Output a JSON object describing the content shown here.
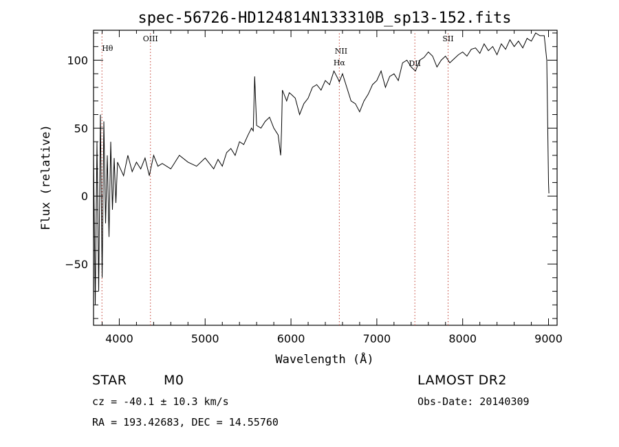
{
  "chart_data": {
    "type": "line",
    "title": "spec-56726-HD124814N133310B_sp13-152.fits",
    "xlabel": "Wavelength (Å)",
    "ylabel": "Flux (relative)",
    "xlim": [
      3700,
      9100
    ],
    "ylim": [
      -95,
      122
    ],
    "xticks": [
      4000,
      5000,
      6000,
      7000,
      8000,
      9000
    ],
    "yticks": [
      -50,
      0,
      50,
      100
    ],
    "grid": false,
    "series": [
      {
        "color": "#000000",
        "x": [
          3700,
          3720,
          3740,
          3760,
          3780,
          3800,
          3820,
          3840,
          3860,
          3880,
          3900,
          3920,
          3940,
          3960,
          3980,
          4000,
          4050,
          4100,
          4150,
          4200,
          4250,
          4300,
          4350,
          4400,
          4450,
          4500,
          4600,
          4700,
          4800,
          4900,
          5000,
          5100,
          5150,
          5200,
          5250,
          5300,
          5350,
          5400,
          5450,
          5500,
          5540,
          5560,
          5577,
          5600,
          5650,
          5700,
          5750,
          5800,
          5850,
          5880,
          5890,
          5900,
          5950,
          5980,
          6000,
          6050,
          6100,
          6150,
          6200,
          6250,
          6300,
          6350,
          6400,
          6450,
          6500,
          6550,
          6563,
          6600,
          6650,
          6700,
          6750,
          6800,
          6850,
          6900,
          6950,
          7000,
          7050,
          7100,
          7150,
          7200,
          7250,
          7300,
          7350,
          7400,
          7450,
          7500,
          7550,
          7600,
          7650,
          7700,
          7750,
          7800,
          7850,
          7900,
          7950,
          8000,
          8050,
          8100,
          8150,
          8200,
          8250,
          8300,
          8350,
          8400,
          8450,
          8500,
          8550,
          8600,
          8650,
          8700,
          8750,
          8800,
          8850,
          8900,
          8950,
          8980,
          9000,
          9005
        ],
        "y": [
          30,
          -80,
          40,
          -70,
          60,
          -60,
          55,
          -20,
          30,
          -30,
          40,
          -10,
          28,
          -5,
          25,
          22,
          15,
          30,
          18,
          25,
          20,
          28,
          15,
          30,
          22,
          24,
          20,
          30,
          25,
          22,
          28,
          20,
          27,
          22,
          32,
          35,
          30,
          40,
          38,
          45,
          50,
          48,
          88,
          52,
          50,
          55,
          58,
          50,
          45,
          30,
          48,
          78,
          70,
          76,
          75,
          72,
          60,
          68,
          72,
          80,
          82,
          78,
          85,
          82,
          92,
          86,
          84,
          90,
          80,
          70,
          68,
          62,
          70,
          75,
          82,
          85,
          92,
          80,
          88,
          90,
          85,
          98,
          100,
          95,
          92,
          100,
          102,
          106,
          103,
          95,
          100,
          103,
          98,
          101,
          104,
          106,
          103,
          108,
          109,
          105,
          112,
          107,
          110,
          104,
          112,
          108,
          115,
          110,
          114,
          109,
          116,
          114,
          120,
          118,
          118,
          100,
          10,
          2
        ]
      }
    ],
    "annotations": [
      {
        "label": "Hθ",
        "x": 3798
      },
      {
        "label": "OIII",
        "x": 4363
      },
      {
        "label": "NII",
        "x": 6584
      },
      {
        "label": "Hα",
        "x": 6563
      },
      {
        "label": "DII",
        "x": 7443
      },
      {
        "label": "SII",
        "x": 7830
      }
    ]
  },
  "info": {
    "class_label": "STAR",
    "subclass": "M0",
    "survey": "LAMOST DR2",
    "cz": "cz = -40.1 ± 10.3 km/s",
    "obs_date": "Obs-Date: 20140309",
    "coords": "RA = 193.42683, DEC =  14.55760"
  }
}
